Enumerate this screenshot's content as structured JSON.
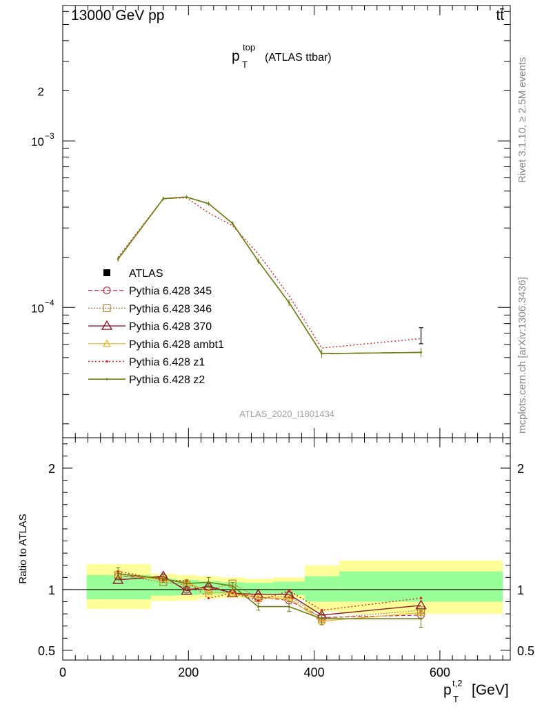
{
  "header": {
    "left": "13000 GeV pp",
    "right": "tt̄"
  },
  "side_labels": {
    "rivet": "Rivet 3.1.10, ≥ 2.5M events",
    "mcplots": "mcplots.cern.ch [arXiv:1306.3436]"
  },
  "colors": {
    "ATLAS": "#000000",
    "p345": "#c0304a",
    "p346": "#b0803c",
    "p370": "#8b1a2a",
    "ambt1": "#f0b020",
    "z1": "#e02020",
    "z2": "#6e7f10",
    "band_inner": "#99ff99",
    "band_outer": "#ffff99"
  },
  "chart_data": [
    {
      "type": "line",
      "title": "p_T^top (ATLAS ttbar)",
      "title_main": "p",
      "title_sup": "top",
      "title_sub": "T",
      "title_rest": "(ATLAS ttbar)",
      "watermark": "ATLAS_2020_I1801434",
      "yscale": "log",
      "xlim": [
        0,
        712
      ],
      "ylim": [
        1.65e-05,
        0.0065
      ],
      "yticks": [
        {
          "value": 0.002,
          "base": "2",
          "exp": ""
        },
        {
          "value": 0.001,
          "base": "10",
          "exp": "−3"
        },
        {
          "value": 0.0001,
          "base": "10",
          "exp": "−4"
        }
      ],
      "legend_position": "left",
      "series": [
        {
          "name": "ATLAS",
          "key": "ATLAS",
          "x": [
            570
          ],
          "y": [
            6.8e-05
          ],
          "err": [
            7.5e-06
          ]
        },
        {
          "name": "Pythia 6.428 345",
          "key": "p345",
          "x": [
            88,
            160,
            197,
            232,
            270,
            311,
            360,
            412,
            570
          ],
          "y": [
            0.000195,
            0.00045,
            0.00046,
            0.00042,
            0.00032,
            0.00019,
            0.000107,
            5.28e-05,
            5.37e-05
          ]
        },
        {
          "name": "Pythia 6.428 346",
          "key": "p346",
          "x": [
            88,
            160,
            197,
            232,
            270,
            311,
            360,
            412,
            570
          ],
          "y": [
            0.000195,
            0.00045,
            0.00046,
            0.00042,
            0.00032,
            0.00019,
            0.000107,
            5.28e-05,
            5.37e-05
          ]
        },
        {
          "name": "Pythia 6.428 370",
          "key": "p370",
          "x": [
            88,
            160,
            197,
            232,
            270,
            311,
            360,
            412,
            570
          ],
          "y": [
            0.000195,
            0.00045,
            0.00046,
            0.00042,
            0.00032,
            0.00019,
            0.000107,
            5.28e-05,
            5.37e-05
          ]
        },
        {
          "name": "Pythia 6.428 ambt1",
          "key": "ambt1",
          "x": [
            88,
            160,
            197,
            232,
            270,
            311,
            360,
            412,
            570
          ],
          "y": [
            0.000195,
            0.00045,
            0.00046,
            0.00042,
            0.00032,
            0.00019,
            0.000107,
            5.28e-05,
            5.37e-05
          ]
        },
        {
          "name": "Pythia 6.428 z1",
          "key": "z1",
          "x": [
            88,
            160,
            197,
            232,
            270,
            311,
            360,
            412,
            570
          ],
          "y": [
            0.0002,
            0.00045,
            0.000455,
            0.00037,
            0.00031,
            0.00021,
            0.000118,
            5.7e-05,
            6.5e-05
          ]
        },
        {
          "name": "Pythia 6.428 z2",
          "key": "z2",
          "x": [
            88,
            160,
            197,
            232,
            270,
            311,
            360,
            412,
            570
          ],
          "y": [
            0.000195,
            0.00045,
            0.00046,
            0.00042,
            0.00032,
            0.00019,
            0.000107,
            5.28e-05,
            5.37e-05
          ],
          "err": [
            7e-06,
            1.2e-05,
            1.2e-05,
            1.2e-05,
            1e-05,
            7e-06,
            5e-06,
            3e-06,
            3.5e-06
          ]
        }
      ]
    },
    {
      "type": "line",
      "ylabel": "Ratio to ATLAS",
      "xlabel": "p_T^{t,2} [GeV]",
      "xlabel_main": "p",
      "xlabel_sup": "t,2",
      "xlabel_sub": "T",
      "xlabel_rest": "[GeV]",
      "xlim": [
        0,
        712
      ],
      "ylim": [
        0.42,
        2.25
      ],
      "xticks": [
        0,
        200,
        400,
        600
      ],
      "yticks": [
        0.5,
        1,
        2
      ],
      "bands": [
        {
          "x0": 38,
          "x1": 140,
          "inner": [
            0.92,
            1.12
          ],
          "outer": [
            0.84,
            1.21
          ]
        },
        {
          "x0": 140,
          "x1": 180,
          "inner": [
            0.95,
            1.09
          ],
          "outer": [
            0.905,
            1.13
          ]
        },
        {
          "x0": 180,
          "x1": 215,
          "inner": [
            0.955,
            1.08
          ],
          "outer": [
            0.91,
            1.12
          ]
        },
        {
          "x0": 215,
          "x1": 250,
          "inner": [
            0.96,
            1.07
          ],
          "outer": [
            0.925,
            1.11
          ]
        },
        {
          "x0": 250,
          "x1": 290,
          "inner": [
            0.962,
            1.06
          ],
          "outer": [
            0.93,
            1.1
          ]
        },
        {
          "x0": 290,
          "x1": 335,
          "inner": [
            0.965,
            1.055
          ],
          "outer": [
            0.935,
            1.09
          ]
        },
        {
          "x0": 335,
          "x1": 385,
          "inner": [
            0.955,
            1.065
          ],
          "outer": [
            0.92,
            1.1
          ]
        },
        {
          "x0": 385,
          "x1": 440,
          "inner": [
            0.9,
            1.11
          ],
          "outer": [
            0.82,
            1.2
          ]
        },
        {
          "x0": 440,
          "x1": 700,
          "inner": [
            0.9,
            1.15
          ],
          "outer": [
            0.8,
            1.24
          ]
        }
      ],
      "series": [
        {
          "key": "p345",
          "x": [
            88,
            160,
            197,
            232,
            270,
            311,
            360,
            412,
            570
          ],
          "y": [
            1.11,
            1.1,
            1.0,
            1.02,
            0.97,
            0.94,
            0.91,
            0.77,
            0.79
          ]
        },
        {
          "key": "p346",
          "x": [
            88,
            160,
            197,
            232,
            270,
            311,
            360,
            412,
            570
          ],
          "y": [
            1.12,
            1.06,
            1.04,
            1.0,
            1.05,
            0.93,
            0.95,
            0.76,
            0.83
          ]
        },
        {
          "key": "p370",
          "x": [
            88,
            160,
            197,
            232,
            270,
            311,
            360,
            412,
            570
          ],
          "y": [
            1.08,
            1.11,
            0.99,
            1.03,
            0.97,
            0.96,
            0.96,
            0.79,
            0.87
          ]
        },
        {
          "key": "ambt1",
          "x": [
            88,
            160,
            197,
            232,
            270,
            311,
            360,
            412,
            570
          ],
          "y": [
            1.13,
            1.08,
            1.06,
            0.98,
            0.97,
            0.93,
            0.93,
            0.74,
            0.81
          ]
        },
        {
          "key": "z1",
          "x": [
            88,
            160,
            197,
            232,
            270,
            311,
            360,
            412,
            570
          ],
          "y": [
            1.15,
            1.08,
            1.07,
            0.93,
            0.97,
            0.91,
            0.99,
            0.83,
            0.93
          ]
        },
        {
          "key": "z2",
          "x": [
            88,
            160,
            197,
            232,
            270,
            311,
            360,
            412,
            570
          ],
          "y": [
            1.13,
            1.09,
            1.05,
            1.06,
            1.03,
            0.86,
            0.86,
            0.76,
            0.76
          ],
          "err": [
            0.05,
            0.03,
            0.03,
            0.04,
            0.03,
            0.03,
            0.04,
            0.05,
            0.07
          ]
        }
      ]
    }
  ]
}
